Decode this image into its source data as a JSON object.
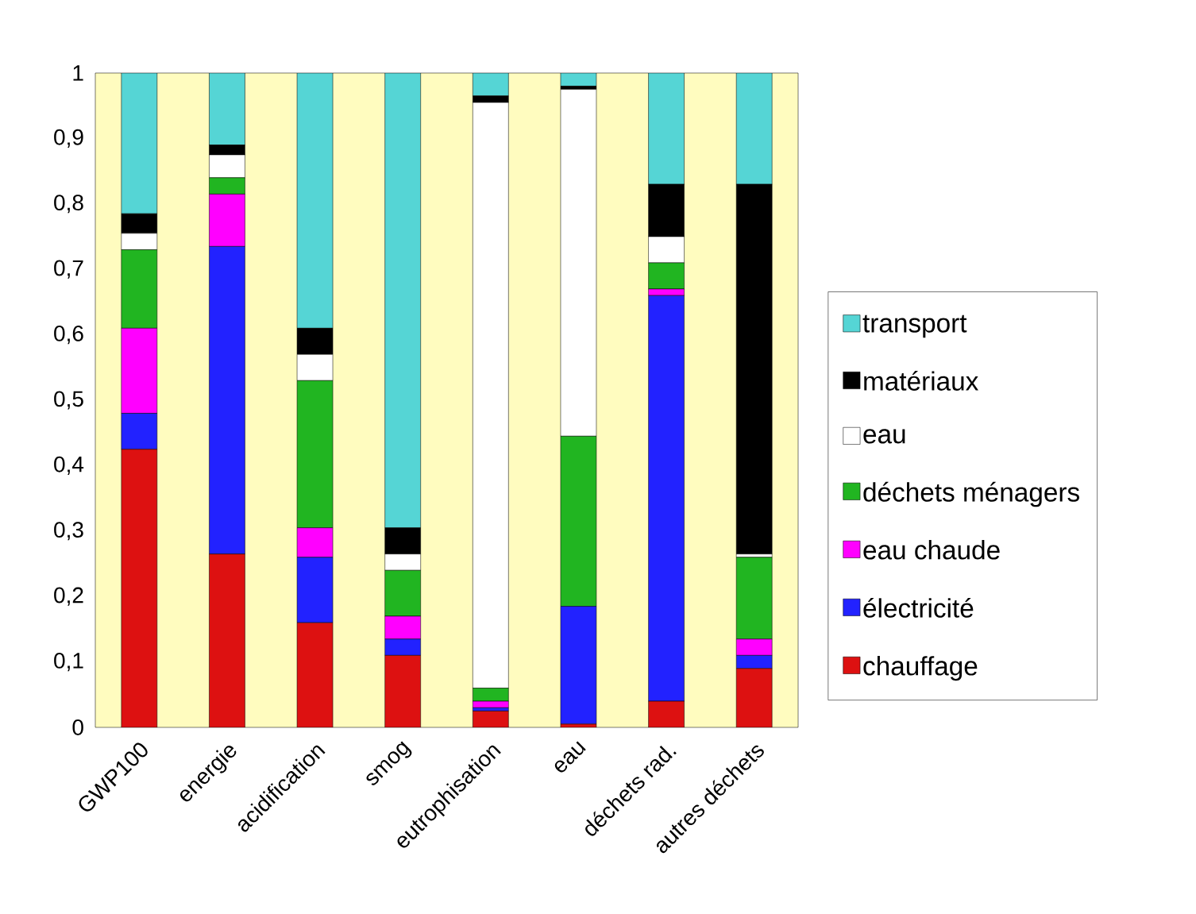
{
  "chart_data": {
    "type": "bar",
    "stacked": true,
    "legend": "right",
    "categories": [
      "GWP100",
      "energie",
      "acidification",
      "smog",
      "eutrophisation",
      "eau",
      "déchets rad.",
      "autres déchets"
    ],
    "ylim": [
      0,
      1
    ],
    "yticks": [
      0,
      {
        "value": 0.1,
        "label": "0,1"
      },
      {
        "value": 0.2,
        "label": "0,2"
      },
      {
        "value": 0.3,
        "label": "0,3"
      },
      {
        "value": 0.4,
        "label": "0,4"
      },
      {
        "value": 0.5,
        "label": "0,5"
      },
      {
        "value": 0.6,
        "label": "0,6"
      },
      {
        "value": 0.7,
        "label": "0,7"
      },
      {
        "value": 0.8,
        "label": "0,8"
      },
      {
        "value": 0.9,
        "label": "0,9"
      },
      1
    ],
    "series": [
      {
        "name": "chauffage",
        "color": "#dd1111",
        "values": [
          0.425,
          0.265,
          0.16,
          0.11,
          0.025,
          0.005,
          0.04,
          0.09
        ]
      },
      {
        "name": "électricité",
        "color": "#2222ff",
        "values": [
          0.055,
          0.47,
          0.1,
          0.025,
          0.005,
          0.18,
          0.62,
          0.02
        ]
      },
      {
        "name": "eau chaude",
        "color": "#ff00ff",
        "values": [
          0.13,
          0.08,
          0.045,
          0.035,
          0.01,
          0,
          0.01,
          0.025
        ]
      },
      {
        "name": "déchets ménagers",
        "color": "#21b521",
        "values": [
          0.12,
          0.025,
          0.225,
          0.07,
          0.02,
          0.26,
          0.04,
          0.125
        ]
      },
      {
        "name": "eau",
        "color": "#ffffff",
        "values": [
          0.025,
          0.035,
          0.04,
          0.025,
          0.895,
          0.53,
          0.04,
          0.005
        ]
      },
      {
        "name": "matériaux",
        "color": "#000000",
        "values": [
          0.03,
          0.015,
          0.04,
          0.04,
          0.01,
          0.005,
          0.08,
          0.565
        ]
      },
      {
        "name": "transport",
        "color": "#55d5d5",
        "values": [
          0.215,
          0.11,
          0.39,
          0.695,
          0.035,
          0.02,
          0.17,
          0.17
        ]
      }
    ]
  }
}
